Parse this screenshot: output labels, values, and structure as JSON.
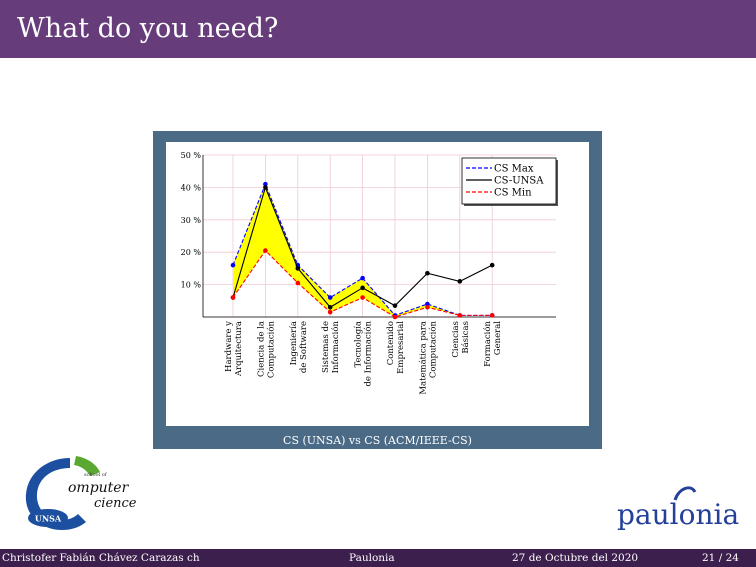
{
  "slide": {
    "title": "What do you need?",
    "caption": "CS (UNSA) vs CS (ACM/IEEE-CS)"
  },
  "footer": {
    "author": "Christofer Fabián Chávez Carazas  ch",
    "institute": "Paulonia",
    "date": "27 de Octubre del 2020",
    "page": "21 / 24"
  },
  "logos": {
    "left_line1": "school of",
    "left_line2": "omputer",
    "left_line3": "cience",
    "left_badge": "UNSA",
    "right_text": "paulonia"
  },
  "colors": {
    "title_bar": "#663c7a",
    "footer_bar": "#3d1f4e",
    "frame": "#4a6a86",
    "fill_band": "#ffff00",
    "cs_max": "#0000ff",
    "cs_unsa": "#000000",
    "cs_min": "#ff0000"
  },
  "chart_data": {
    "type": "line",
    "ylim": [
      0,
      50
    ],
    "yticks": [
      "10 %",
      "20 %",
      "30 %",
      "40 %",
      "50 %"
    ],
    "categories": [
      [
        "Hardware y",
        "Arquitectura"
      ],
      [
        "Ciencia de la",
        "Computación"
      ],
      [
        "Ingeniería",
        "de Software"
      ],
      [
        "Sistemas de",
        "Información"
      ],
      [
        "Tecnología",
        "de Información"
      ],
      [
        "Contenido",
        "Empresarial"
      ],
      [
        "Matemática para",
        "Computación"
      ],
      [
        "Ciencias",
        "Básicas"
      ],
      [
        "Formación",
        "General"
      ]
    ],
    "series": [
      {
        "name": "CS Max",
        "values": [
          16,
          41,
          16,
          6,
          12,
          0.5,
          4,
          0.5,
          0.5
        ]
      },
      {
        "name": "CS-UNSA",
        "values": [
          6,
          40,
          15,
          3,
          9,
          3.5,
          13.5,
          11,
          16
        ]
      },
      {
        "name": "CS Min",
        "values": [
          6,
          20.5,
          10.5,
          1.5,
          6,
          0,
          3,
          0.5,
          0.5
        ]
      }
    ],
    "grid": true,
    "legend": "top-right"
  }
}
